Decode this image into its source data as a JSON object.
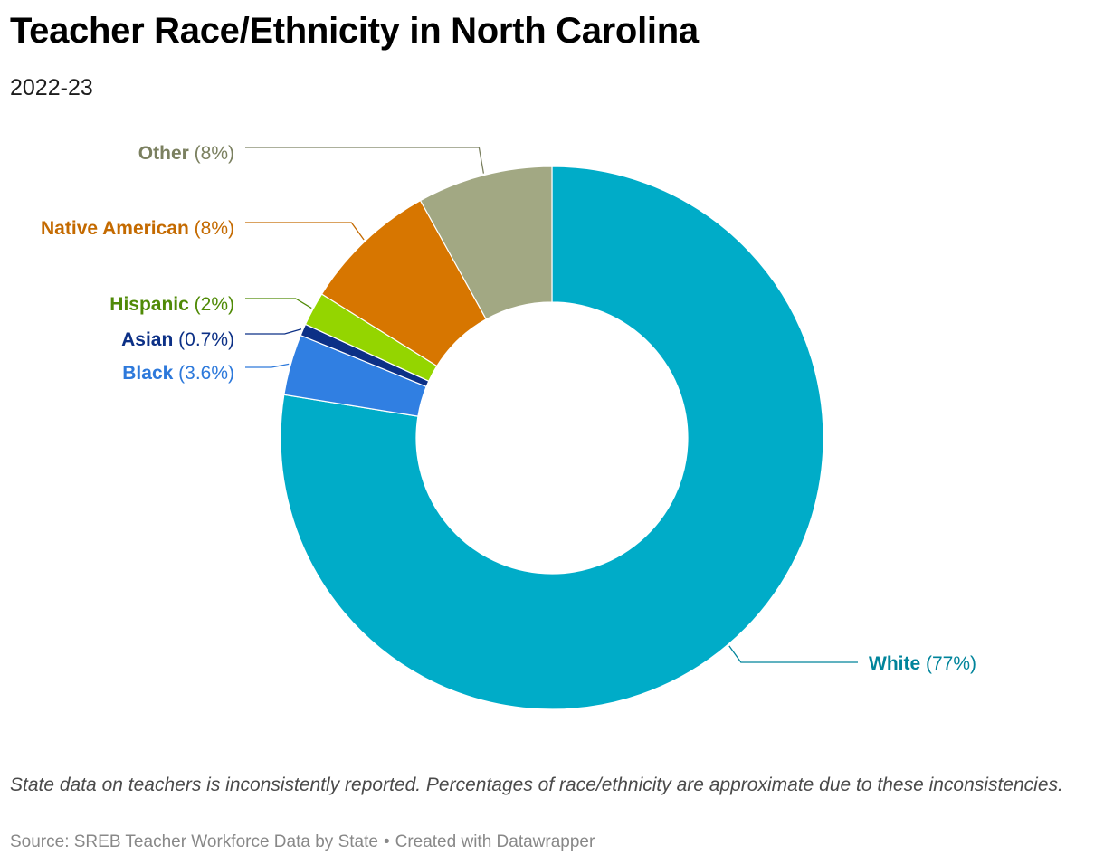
{
  "title": "Teacher Race/Ethnicity in North Carolina",
  "subtitle": "2022-23",
  "note": "State data on teachers is inconsistently reported. Percentages of race/ethnicity are approximate due to these inconsistencies.",
  "source": {
    "text": "Source: SREB Teacher Workforce Data by State",
    "separator": "•",
    "credit": "Created with Datawrapper"
  },
  "chart_data": {
    "type": "pie",
    "style": "donut",
    "slices": [
      {
        "name": "White",
        "value": 77,
        "label": "(77%)",
        "color": "#00acc8",
        "label_color": "#00849b"
      },
      {
        "name": "Black",
        "value": 3.6,
        "label": "(3.6%)",
        "color": "#307fe2",
        "label_color": "#2d79db"
      },
      {
        "name": "Asian",
        "value": 0.7,
        "label": "(0.7%)",
        "color": "#0c3086",
        "label_color": "#0c3086"
      },
      {
        "name": "Hispanic",
        "value": 2,
        "label": "(2%)",
        "color": "#94d500",
        "label_color": "#4f8a06"
      },
      {
        "name": "Native American",
        "value": 8,
        "label": "(8%)",
        "color": "#d77600",
        "label_color": "#c46a00"
      },
      {
        "name": "Other",
        "value": 8,
        "label": "(8%)",
        "color": "#a2a883",
        "label_color": "#7b8060"
      }
    ]
  }
}
